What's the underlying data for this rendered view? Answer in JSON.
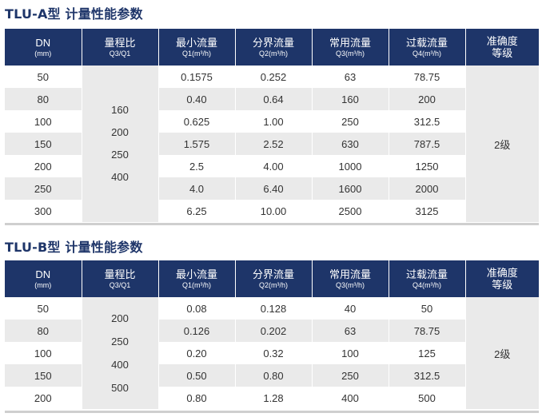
{
  "tlu_a": {
    "title": "TLU-A型 计量性能参数",
    "headers": {
      "dn": "DN",
      "dn_unit": "(mm)",
      "range_ratio": "量程比",
      "range_ratio_sub": "Q3/Q1",
      "min_flow": "最小流量",
      "min_flow_sub": "Q1(m³/h)",
      "boundary_flow": "分界流量",
      "boundary_flow_sub": "Q2(m³/h)",
      "common_flow": "常用流量",
      "common_flow_sub": "Q3(m³/h)",
      "overload_flow": "过载流量",
      "overload_flow_sub": "Q4(m³/h)",
      "accuracy_line1": "准确度",
      "accuracy_line2": "等级"
    },
    "range_ratios": "160\n200\n250\n400",
    "accuracy": "2级",
    "rows": [
      {
        "dn": "50",
        "q1": "0.1575",
        "q2": "0.252",
        "q3": "63",
        "q4": "78.75"
      },
      {
        "dn": "80",
        "q1": "0.40",
        "q2": "0.64",
        "q3": "160",
        "q4": "200"
      },
      {
        "dn": "100",
        "q1": "0.625",
        "q2": "1.00",
        "q3": "250",
        "q4": "312.5"
      },
      {
        "dn": "150",
        "q1": "1.575",
        "q2": "2.52",
        "q3": "630",
        "q4": "787.5"
      },
      {
        "dn": "200",
        "q1": "2.5",
        "q2": "4.00",
        "q3": "1000",
        "q4": "1250"
      },
      {
        "dn": "250",
        "q1": "4.0",
        "q2": "6.40",
        "q3": "1600",
        "q4": "2000"
      },
      {
        "dn": "300",
        "q1": "6.25",
        "q2": "10.00",
        "q3": "2500",
        "q4": "3125"
      }
    ]
  },
  "tlu_b": {
    "title": "TLU-B型 计量性能参数",
    "headers": {
      "dn": "DN",
      "dn_unit": "(mm)",
      "range_ratio": "量程比",
      "range_ratio_sub": "Q3/Q1",
      "min_flow": "最小流量",
      "min_flow_sub": "Q1(m³/h)",
      "boundary_flow": "分界流量",
      "boundary_flow_sub": "Q2(m³/h)",
      "common_flow": "常用流量",
      "common_flow_sub": "Q3(m³/h)",
      "overload_flow": "过载流量",
      "overload_flow_sub": "Q4(m³/h)",
      "accuracy_line1": "准确度",
      "accuracy_line2": "等级"
    },
    "range_ratios": "200\n250\n400\n500",
    "accuracy": "2级",
    "rows": [
      {
        "dn": "50",
        "q1": "0.08",
        "q2": "0.128",
        "q3": "40",
        "q4": "50"
      },
      {
        "dn": "80",
        "q1": "0.126",
        "q2": "0.202",
        "q3": "63",
        "q4": "78.75"
      },
      {
        "dn": "100",
        "q1": "0.20",
        "q2": "0.32",
        "q3": "100",
        "q4": "125"
      },
      {
        "dn": "150",
        "q1": "0.50",
        "q2": "0.80",
        "q3": "250",
        "q4": "312.5"
      },
      {
        "dn": "200",
        "q1": "0.80",
        "q2": "1.28",
        "q3": "400",
        "q4": "500"
      }
    ]
  }
}
